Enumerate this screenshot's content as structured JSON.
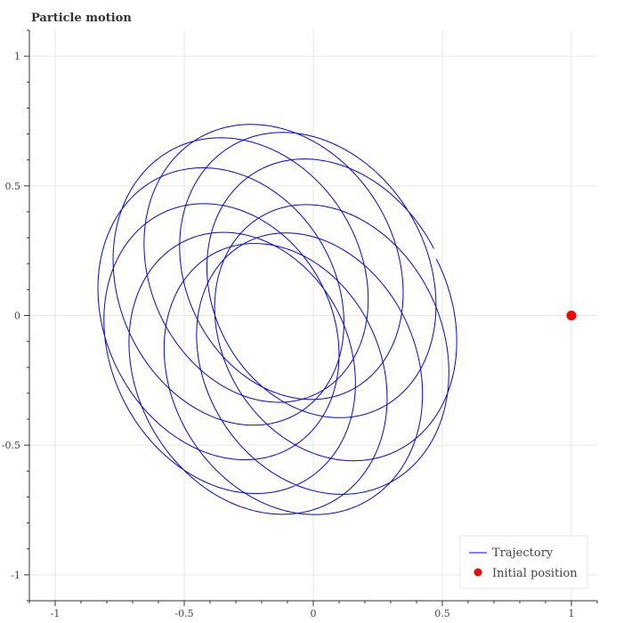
{
  "chart_data": {
    "type": "line",
    "title": "Particle motion",
    "xlabel": "",
    "ylabel": "",
    "xlim": [
      -1.1,
      1.1
    ],
    "ylim": [
      -1.1,
      1.1
    ],
    "x_ticks": [
      -1,
      -0.5,
      0,
      0.5,
      1
    ],
    "x_tick_labels": [
      "-1",
      "-0.5",
      "0",
      "0.5",
      "1"
    ],
    "y_ticks": [
      -1,
      -0.5,
      0,
      0.5,
      1
    ],
    "y_tick_labels": [
      "-1",
      "-0.5",
      "0",
      "0.5",
      "1"
    ],
    "grid": true,
    "legend": {
      "placement": "bottom-right",
      "entries": [
        "Trajectory",
        "Initial position"
      ]
    },
    "series": [
      {
        "name": "Trajectory",
        "kind": "line",
        "color": "#0000ff",
        "description_model": {
          "ellipse_center": [
            -0.14,
            -0.02
          ],
          "semi_axis_a": 0.44,
          "semi_axis_b": 0.55,
          "ellipse_tilt_deg": 28,
          "orbit_radius": 0.23,
          "precession_start_deg": 18,
          "total_orbits": 10,
          "orbit_direction": 1,
          "precession_per_orbit_deg": 35
        }
      },
      {
        "name": "Initial position",
        "kind": "point",
        "color": "#ff0000",
        "x": [
          1.0
        ],
        "y": [
          0.0
        ]
      }
    ]
  }
}
